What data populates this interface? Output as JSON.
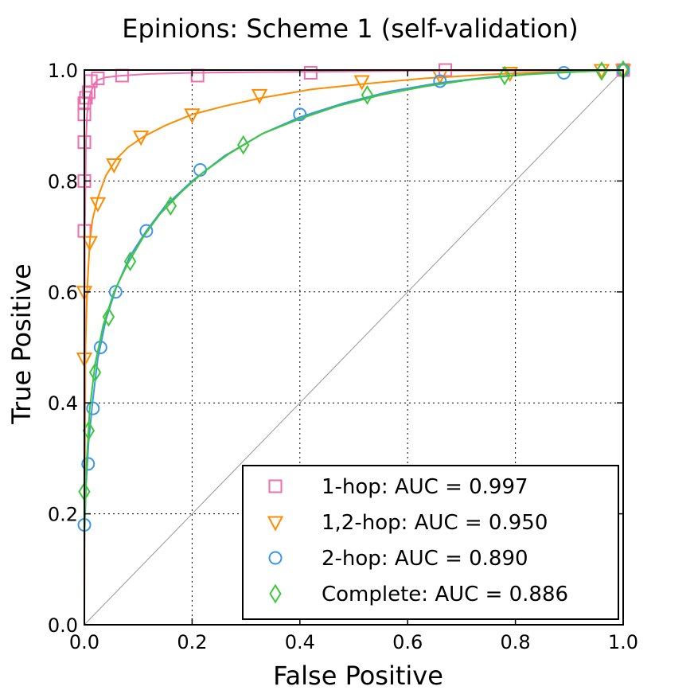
{
  "chart_data": {
    "type": "line",
    "title": "Epinions: Scheme 1 (self-validation)",
    "xlabel": "False Positive",
    "ylabel": "True Positive",
    "xlim": [
      0.0,
      1.0
    ],
    "ylim": [
      0.0,
      1.0
    ],
    "xticks": [
      "0.0",
      "0.2",
      "0.4",
      "0.6",
      "0.8",
      "1.0"
    ],
    "yticks": [
      "0.0",
      "0.2",
      "0.4",
      "0.6",
      "0.8",
      "1.0"
    ],
    "grid": true,
    "legend_position": "lower right",
    "diagonal": {
      "x": [
        0,
        1
      ],
      "y": [
        0,
        1
      ],
      "color": "#999999"
    },
    "series": [
      {
        "name": "1-hop: AUC = 0.997",
        "color": "#ee6fae",
        "marker": "square",
        "x": [
          0.0,
          0.0005,
          0.001,
          0.002,
          0.003,
          0.005,
          0.008,
          0.012,
          0.018,
          0.025,
          0.04,
          0.07,
          0.12,
          0.2,
          0.3,
          0.42,
          0.55,
          0.68,
          0.8,
          0.9,
          1.0
        ],
        "y": [
          0.0,
          0.52,
          0.71,
          0.79,
          0.87,
          0.92,
          0.945,
          0.96,
          0.975,
          0.982,
          0.987,
          0.99,
          0.993,
          0.995,
          0.996,
          0.997,
          0.998,
          0.999,
          0.999,
          0.9995,
          1.0
        ],
        "markers_x": [
          0.0,
          0.0,
          0.0,
          0.0,
          0.0,
          0.003,
          0.008,
          0.012,
          0.025,
          0.07,
          0.21,
          0.42,
          0.67,
          1.0
        ],
        "markers_y": [
          0.71,
          0.8,
          0.87,
          0.92,
          0.94,
          0.95,
          0.96,
          0.98,
          0.985,
          0.99,
          0.99,
          0.995,
          1.0,
          1.0
        ]
      },
      {
        "name": "1,2-hop: AUC = 0.950",
        "color": "#ff8c00",
        "marker": "triangle_down",
        "x": [
          0.0,
          0.002,
          0.005,
          0.01,
          0.015,
          0.025,
          0.04,
          0.06,
          0.08,
          0.11,
          0.15,
          0.2,
          0.26,
          0.33,
          0.42,
          0.52,
          0.63,
          0.75,
          0.87,
          1.0
        ],
        "y": [
          0.0,
          0.5,
          0.6,
          0.69,
          0.73,
          0.77,
          0.81,
          0.84,
          0.86,
          0.88,
          0.9,
          0.92,
          0.935,
          0.95,
          0.965,
          0.975,
          0.985,
          0.992,
          0.997,
          1.0
        ],
        "markers_x": [
          0.0,
          0.0,
          0.01,
          0.025,
          0.055,
          0.105,
          0.2,
          0.325,
          0.515,
          0.66,
          0.79,
          0.96,
          1.0
        ],
        "markers_y": [
          0.48,
          0.6,
          0.69,
          0.76,
          0.83,
          0.88,
          0.92,
          0.955,
          0.98,
          0.99,
          0.995,
          1.0,
          1.0
        ]
      },
      {
        "name": "2-hop: AUC = 0.890",
        "color": "#3c97e6",
        "marker": "circle",
        "x": [
          0.0,
          0.003,
          0.008,
          0.015,
          0.025,
          0.04,
          0.06,
          0.085,
          0.115,
          0.15,
          0.2,
          0.26,
          0.33,
          0.4,
          0.48,
          0.57,
          0.66,
          0.76,
          0.86,
          0.94,
          1.0
        ],
        "y": [
          0.15,
          0.25,
          0.33,
          0.4,
          0.48,
          0.55,
          0.61,
          0.665,
          0.71,
          0.755,
          0.8,
          0.845,
          0.885,
          0.915,
          0.94,
          0.962,
          0.977,
          0.988,
          0.995,
          0.998,
          1.0
        ],
        "markers_x": [
          0.0,
          0.007,
          0.016,
          0.03,
          0.058,
          0.115,
          0.215,
          0.4,
          0.66,
          0.89,
          1.0
        ],
        "markers_y": [
          0.18,
          0.29,
          0.39,
          0.5,
          0.6,
          0.71,
          0.82,
          0.92,
          0.98,
          0.995,
          1.0
        ]
      },
      {
        "name": "Complete: AUC = 0.886",
        "color": "#3cc83c",
        "marker": "diamond",
        "x": [
          0.0,
          0.004,
          0.01,
          0.02,
          0.035,
          0.055,
          0.08,
          0.11,
          0.14,
          0.18,
          0.22,
          0.27,
          0.33,
          0.4,
          0.47,
          0.55,
          0.63,
          0.72,
          0.82,
          0.92,
          1.0
        ],
        "y": [
          0.15,
          0.29,
          0.39,
          0.47,
          0.54,
          0.6,
          0.65,
          0.7,
          0.74,
          0.78,
          0.815,
          0.85,
          0.885,
          0.912,
          0.935,
          0.955,
          0.97,
          0.983,
          0.992,
          0.997,
          1.0
        ],
        "markers_x": [
          0.0,
          0.008,
          0.02,
          0.045,
          0.085,
          0.16,
          0.295,
          0.525,
          0.78,
          0.96,
          1.0
        ],
        "markers_y": [
          0.24,
          0.35,
          0.455,
          0.555,
          0.655,
          0.755,
          0.865,
          0.955,
          0.99,
          0.998,
          1.0
        ]
      }
    ]
  }
}
